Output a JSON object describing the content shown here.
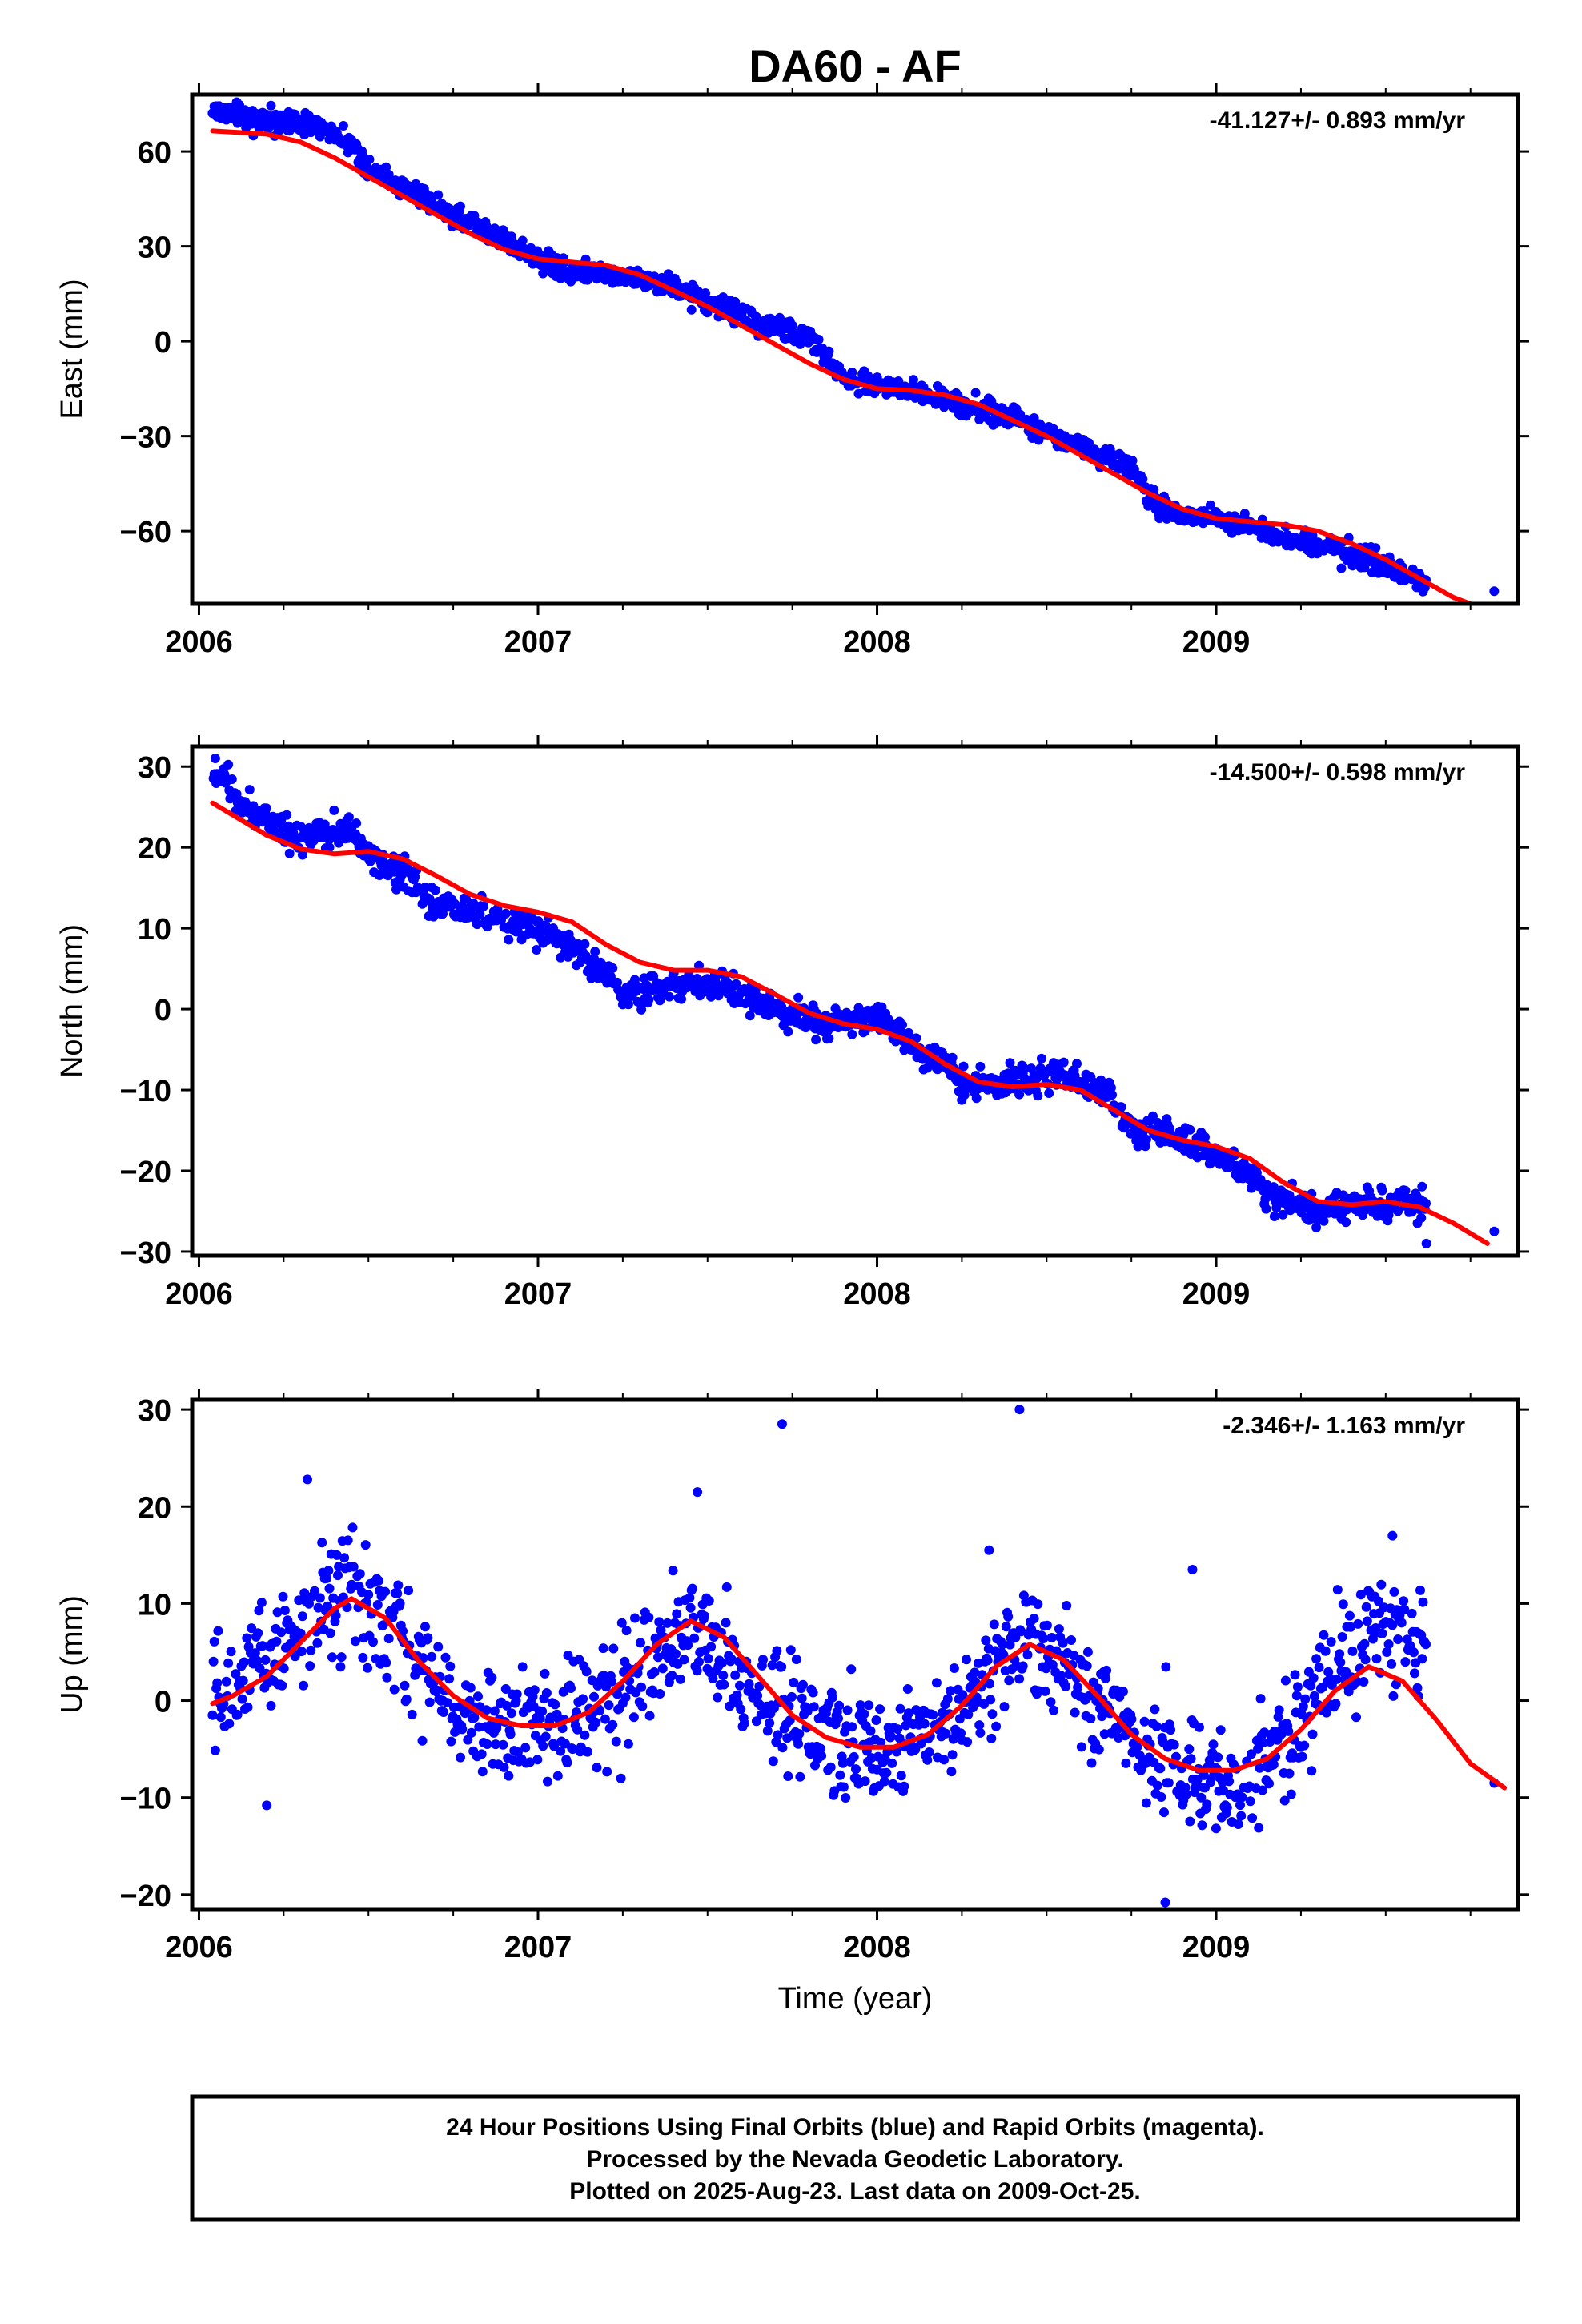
{
  "title": "DA60 - AF",
  "xlabel": "Time (year)",
  "footer": [
    "24 Hour Positions Using Final Orbits (blue) and Rapid Orbits (magenta).",
    "Processed by the Nevada Geodetic Laboratory.",
    "Plotted on 2025-Aug-23. Last data on 2009-Oct-25."
  ],
  "colors": {
    "data": "#0000ff",
    "model": "#ff0000",
    "frame": "#000000"
  },
  "chart_data": [
    {
      "type": "scatter",
      "component": "east",
      "ylabel": "East (mm)",
      "rate_label": "-41.127+/- 0.893 mm/yr",
      "xlim": [
        2005.98,
        2009.89
      ],
      "ylim": [
        -83,
        78
      ],
      "xticks": [
        2006,
        2007,
        2008,
        2009
      ],
      "yticks": [
        -60,
        -30,
        0,
        30,
        60
      ],
      "data_span": [
        2006.04,
        2009.62
      ],
      "noise": 2.5,
      "outliers": [
        [
          2009.82,
          -79
        ]
      ],
      "trend": [
        [
          2006.04,
          73
        ],
        [
          2006.2,
          70
        ],
        [
          2006.35,
          68
        ],
        [
          2006.45,
          63
        ],
        [
          2006.5,
          55
        ],
        [
          2006.6,
          49
        ],
        [
          2006.75,
          40
        ],
        [
          2006.9,
          32
        ],
        [
          2007.0,
          26
        ],
        [
          2007.1,
          22
        ],
        [
          2007.25,
          21
        ],
        [
          2007.4,
          17
        ],
        [
          2007.5,
          12
        ],
        [
          2007.65,
          6
        ],
        [
          2007.8,
          2
        ],
        [
          2007.9,
          -12
        ],
        [
          2008.0,
          -14
        ],
        [
          2008.15,
          -16
        ],
        [
          2008.25,
          -20
        ],
        [
          2008.4,
          -24
        ],
        [
          2008.6,
          -33
        ],
        [
          2008.75,
          -40
        ],
        [
          2008.8,
          -50
        ],
        [
          2008.9,
          -55
        ],
        [
          2009.05,
          -56
        ],
        [
          2009.15,
          -61
        ],
        [
          2009.3,
          -64
        ],
        [
          2009.45,
          -69
        ],
        [
          2009.62,
          -77
        ]
      ],
      "model": [
        [
          2006.04,
          66.5
        ],
        [
          2006.2,
          65.5
        ],
        [
          2006.3,
          63
        ],
        [
          2006.4,
          58
        ],
        [
          2006.5,
          52
        ],
        [
          2006.6,
          46
        ],
        [
          2006.7,
          40
        ],
        [
          2006.8,
          34
        ],
        [
          2006.9,
          29
        ],
        [
          2007.0,
          26
        ],
        [
          2007.1,
          25
        ],
        [
          2007.2,
          24
        ],
        [
          2007.3,
          21
        ],
        [
          2007.4,
          16
        ],
        [
          2007.5,
          11
        ],
        [
          2007.6,
          5
        ],
        [
          2007.7,
          -1
        ],
        [
          2007.8,
          -7
        ],
        [
          2007.9,
          -12
        ],
        [
          2008.0,
          -15
        ],
        [
          2008.1,
          -15.5
        ],
        [
          2008.2,
          -17
        ],
        [
          2008.3,
          -20
        ],
        [
          2008.4,
          -25
        ],
        [
          2008.5,
          -30
        ],
        [
          2008.6,
          -36
        ],
        [
          2008.7,
          -42
        ],
        [
          2008.8,
          -48
        ],
        [
          2008.9,
          -53
        ],
        [
          2009.0,
          -56
        ],
        [
          2009.1,
          -57
        ],
        [
          2009.2,
          -58
        ],
        [
          2009.3,
          -60
        ],
        [
          2009.4,
          -64
        ],
        [
          2009.5,
          -69
        ],
        [
          2009.6,
          -75
        ],
        [
          2009.7,
          -81
        ],
        [
          2009.75,
          -83
        ]
      ]
    },
    {
      "type": "scatter",
      "component": "north",
      "ylabel": "North (mm)",
      "rate_label": "-14.500+/- 0.598 mm/yr",
      "xlim": [
        2005.98,
        2009.89
      ],
      "ylim": [
        -30.5,
        32.5
      ],
      "xticks": [
        2006,
        2007,
        2008,
        2009
      ],
      "yticks": [
        -30,
        -20,
        -10,
        0,
        10,
        20,
        30
      ],
      "data_span": [
        2006.04,
        2009.62
      ],
      "noise": 1.3,
      "outliers": [
        [
          2009.82,
          -27.5
        ],
        [
          2009.62,
          -29.0
        ]
      ],
      "trend": [
        [
          2006.04,
          30
        ],
        [
          2006.15,
          25
        ],
        [
          2006.3,
          21
        ],
        [
          2006.45,
          22
        ],
        [
          2006.5,
          19
        ],
        [
          2006.6,
          17
        ],
        [
          2006.7,
          13
        ],
        [
          2006.8,
          12
        ],
        [
          2007.0,
          10
        ],
        [
          2007.15,
          6
        ],
        [
          2007.25,
          2
        ],
        [
          2007.4,
          3
        ],
        [
          2007.55,
          3
        ],
        [
          2007.7,
          0
        ],
        [
          2007.85,
          -2
        ],
        [
          2008.0,
          -1
        ],
        [
          2008.1,
          -4
        ],
        [
          2008.25,
          -9
        ],
        [
          2008.4,
          -9
        ],
        [
          2008.55,
          -8
        ],
        [
          2008.7,
          -11
        ],
        [
          2008.75,
          -15
        ],
        [
          2008.9,
          -16
        ],
        [
          2009.05,
          -19
        ],
        [
          2009.15,
          -23
        ],
        [
          2009.3,
          -25
        ],
        [
          2009.45,
          -24
        ],
        [
          2009.62,
          -24
        ]
      ],
      "model": [
        [
          2006.04,
          25.5
        ],
        [
          2006.1,
          24
        ],
        [
          2006.2,
          21.5
        ],
        [
          2006.3,
          19.8
        ],
        [
          2006.4,
          19.2
        ],
        [
          2006.5,
          19.5
        ],
        [
          2006.6,
          18.6
        ],
        [
          2006.7,
          16.5
        ],
        [
          2006.8,
          14.2
        ],
        [
          2006.9,
          12.8
        ],
        [
          2007.0,
          12
        ],
        [
          2007.1,
          10.8
        ],
        [
          2007.2,
          8
        ],
        [
          2007.3,
          5.8
        ],
        [
          2007.4,
          4.8
        ],
        [
          2007.5,
          4.8
        ],
        [
          2007.6,
          4
        ],
        [
          2007.7,
          1.8
        ],
        [
          2007.8,
          -0.5
        ],
        [
          2007.9,
          -1.8
        ],
        [
          2008.0,
          -2.5
        ],
        [
          2008.1,
          -4
        ],
        [
          2008.2,
          -6.8
        ],
        [
          2008.3,
          -9
        ],
        [
          2008.4,
          -9.6
        ],
        [
          2008.5,
          -9.3
        ],
        [
          2008.6,
          -10
        ],
        [
          2008.7,
          -12.5
        ],
        [
          2008.8,
          -15
        ],
        [
          2008.9,
          -16.2
        ],
        [
          2009.0,
          -17
        ],
        [
          2009.1,
          -18.5
        ],
        [
          2009.2,
          -21.5
        ],
        [
          2009.3,
          -23.8
        ],
        [
          2009.4,
          -24.2
        ],
        [
          2009.5,
          -23.8
        ],
        [
          2009.6,
          -24.5
        ],
        [
          2009.7,
          -26.5
        ],
        [
          2009.8,
          -29.0
        ]
      ]
    },
    {
      "type": "scatter",
      "component": "up",
      "ylabel": "Up (mm)",
      "rate_label": "-2.346+/- 1.163 mm/yr",
      "xlim": [
        2005.98,
        2009.89
      ],
      "ylim": [
        -21.5,
        31
      ],
      "xticks": [
        2006,
        2007,
        2008,
        2009
      ],
      "yticks": [
        -20,
        -10,
        0,
        10,
        20,
        30
      ],
      "data_span": [
        2006.04,
        2009.62
      ],
      "noise": 4.0,
      "outliers": [
        [
          2007.72,
          28.5
        ],
        [
          2008.42,
          30
        ],
        [
          2009.82,
          -8.5
        ],
        [
          2006.2,
          -10.8
        ],
        [
          2008.85,
          -20.8
        ],
        [
          2007.47,
          21.5
        ],
        [
          2006.32,
          22.8
        ],
        [
          2008.33,
          15.5
        ],
        [
          2008.93,
          13.5
        ],
        [
          2009.52,
          17
        ]
      ],
      "trend": [
        [
          2006.04,
          0
        ],
        [
          2006.15,
          3
        ],
        [
          2006.3,
          8
        ],
        [
          2006.45,
          11
        ],
        [
          2006.6,
          6
        ],
        [
          2006.8,
          -2
        ],
        [
          2007.0,
          -3
        ],
        [
          2007.2,
          0
        ],
        [
          2007.35,
          5
        ],
        [
          2007.45,
          8
        ],
        [
          2007.6,
          2
        ],
        [
          2007.8,
          -3
        ],
        [
          2008.0,
          -5
        ],
        [
          2008.2,
          -2
        ],
        [
          2008.35,
          4
        ],
        [
          2008.45,
          6
        ],
        [
          2008.6,
          1
        ],
        [
          2008.8,
          -5
        ],
        [
          2008.95,
          -9
        ],
        [
          2009.05,
          -9
        ],
        [
          2009.2,
          -4
        ],
        [
          2009.35,
          4
        ],
        [
          2009.45,
          7
        ],
        [
          2009.62,
          6
        ]
      ],
      "model": [
        [
          2006.04,
          -0.3
        ],
        [
          2006.1,
          0.5
        ],
        [
          2006.2,
          2.5
        ],
        [
          2006.3,
          6
        ],
        [
          2006.4,
          9.5
        ],
        [
          2006.45,
          10.5
        ],
        [
          2006.55,
          8.5
        ],
        [
          2006.65,
          4
        ],
        [
          2006.75,
          0.5
        ],
        [
          2006.85,
          -1.8
        ],
        [
          2006.95,
          -2.6
        ],
        [
          2007.05,
          -2.6
        ],
        [
          2007.15,
          -1.2
        ],
        [
          2007.25,
          2
        ],
        [
          2007.35,
          5.8
        ],
        [
          2007.45,
          8.2
        ],
        [
          2007.55,
          6.5
        ],
        [
          2007.65,
          2.5
        ],
        [
          2007.75,
          -1.5
        ],
        [
          2007.85,
          -3.8
        ],
        [
          2007.95,
          -4.8
        ],
        [
          2008.05,
          -4.8
        ],
        [
          2008.15,
          -3.5
        ],
        [
          2008.25,
          -0.5
        ],
        [
          2008.35,
          3.5
        ],
        [
          2008.45,
          5.8
        ],
        [
          2008.55,
          4.2
        ],
        [
          2008.65,
          0.5
        ],
        [
          2008.75,
          -3.5
        ],
        [
          2008.85,
          -6
        ],
        [
          2008.95,
          -7.2
        ],
        [
          2009.05,
          -7.2
        ],
        [
          2009.15,
          -6
        ],
        [
          2009.25,
          -3
        ],
        [
          2009.35,
          1
        ],
        [
          2009.45,
          3.5
        ],
        [
          2009.55,
          2
        ],
        [
          2009.65,
          -2
        ],
        [
          2009.75,
          -6.5
        ],
        [
          2009.85,
          -9
        ]
      ]
    }
  ]
}
